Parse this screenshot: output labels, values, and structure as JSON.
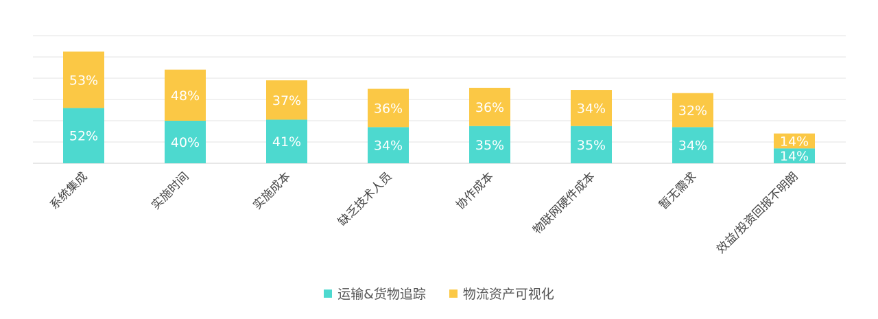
{
  "chart_data": {
    "type": "bar",
    "stacked": true,
    "categories": [
      "系统集成",
      "实施时间",
      "实施成本",
      "缺乏技术人员",
      "协作成本",
      "物联网硬件成本",
      "暂无需求",
      "效益/投资回报不明朗"
    ],
    "series": [
      {
        "name": "运输&货物追踪",
        "values": [
          52,
          40,
          41,
          34,
          35,
          35,
          34,
          14
        ],
        "labels": [
          "52%",
          "40%",
          "41%",
          "34%",
          "35%",
          "35%",
          "34%",
          "14%"
        ],
        "color": "#4dd9cf"
      },
      {
        "name": "物流资产可视化",
        "values": [
          53,
          48,
          37,
          36,
          36,
          34,
          32,
          14
        ],
        "labels": [
          "53%",
          "48%",
          "37%",
          "36%",
          "36%",
          "34%",
          "32%",
          "14%"
        ],
        "color": "#fbc845"
      }
    ],
    "ylim": [
      0,
      120
    ],
    "grid": true,
    "legend_position": "bottom",
    "title": "",
    "xlabel": "",
    "ylabel": ""
  },
  "legend": {
    "item0": "运输&货物追踪",
    "item1": "物流资产可视化"
  }
}
